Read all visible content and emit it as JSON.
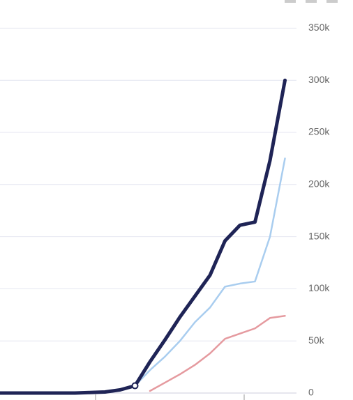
{
  "chart_data": {
    "type": "line",
    "categories": [
      null,
      null,
      null,
      null,
      null,
      null,
      null,
      null,
      null,
      null,
      null,
      null,
      null,
      null,
      null,
      null,
      null,
      null,
      null,
      null
    ],
    "series": [
      {
        "color": "#1f2456",
        "values": [
          0,
          0,
          0,
          0,
          0,
          0,
          500,
          1000,
          3000,
          7000,
          30000,
          51000,
          73000,
          93000,
          113000,
          146000,
          161000,
          164000,
          223000,
          300000
        ]
      },
      {
        "color": "#a9cdef",
        "values": [
          null,
          null,
          null,
          null,
          null,
          null,
          null,
          null,
          null,
          7000,
          22000,
          35000,
          50000,
          68000,
          82000,
          102000,
          105000,
          107000,
          150000,
          225000
        ]
      },
      {
        "color": "#e59a9f",
        "values": [
          null,
          null,
          null,
          null,
          null,
          null,
          null,
          null,
          null,
          null,
          2000,
          10000,
          18000,
          27000,
          38000,
          52000,
          57000,
          62000,
          72000,
          74000
        ]
      }
    ],
    "ylim": [
      0,
      375000
    ],
    "yticks": [
      {
        "value": 0,
        "label": "0"
      },
      {
        "value": 50000,
        "label": "50k"
      },
      {
        "value": 100000,
        "label": "100k"
      },
      {
        "value": 150000,
        "label": "150k"
      },
      {
        "value": 200000,
        "label": "200k"
      },
      {
        "value": 250000,
        "label": "250k"
      },
      {
        "value": 300000,
        "label": "300k"
      },
      {
        "value": 350000,
        "label": "350k"
      }
    ],
    "grid": true
  }
}
